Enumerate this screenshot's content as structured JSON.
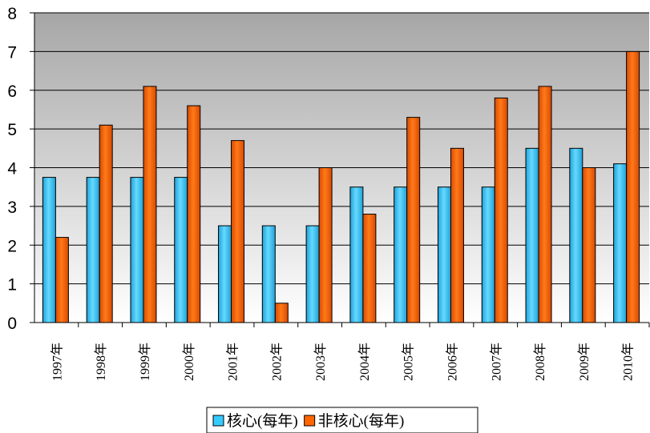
{
  "chart_data": {
    "type": "bar",
    "title": "",
    "xlabel": "",
    "ylabel": "",
    "ylim": [
      0,
      8
    ],
    "yticks": [
      0,
      1,
      2,
      3,
      4,
      5,
      6,
      7,
      8
    ],
    "grid": true,
    "legend_position": "bottom",
    "categories": [
      "1997年",
      "1998年",
      "1999年",
      "2000年",
      "2001年",
      "2002年",
      "2003年",
      "2004年",
      "2005年",
      "2006年",
      "2007年",
      "2008年",
      "2009年",
      "2010年"
    ],
    "series": [
      {
        "name": "核心(每年)",
        "color": "#33CCFF",
        "values": [
          3.75,
          3.75,
          3.75,
          3.75,
          2.5,
          2.5,
          2.5,
          3.5,
          3.5,
          3.5,
          3.5,
          4.5,
          4.5,
          4.1
        ]
      },
      {
        "name": "非核心(每年)",
        "color": "#FF6600",
        "values": [
          2.2,
          5.1,
          6.1,
          5.6,
          4.7,
          0.5,
          4.0,
          2.8,
          5.3,
          4.5,
          5.8,
          6.1,
          4.0,
          7.0
        ]
      }
    ],
    "colors": {
      "plot_background_top": "#A6A6A6",
      "plot_background_bottom": "#FFFFFF",
      "gridline": "#000000",
      "axis": "#000000"
    }
  }
}
